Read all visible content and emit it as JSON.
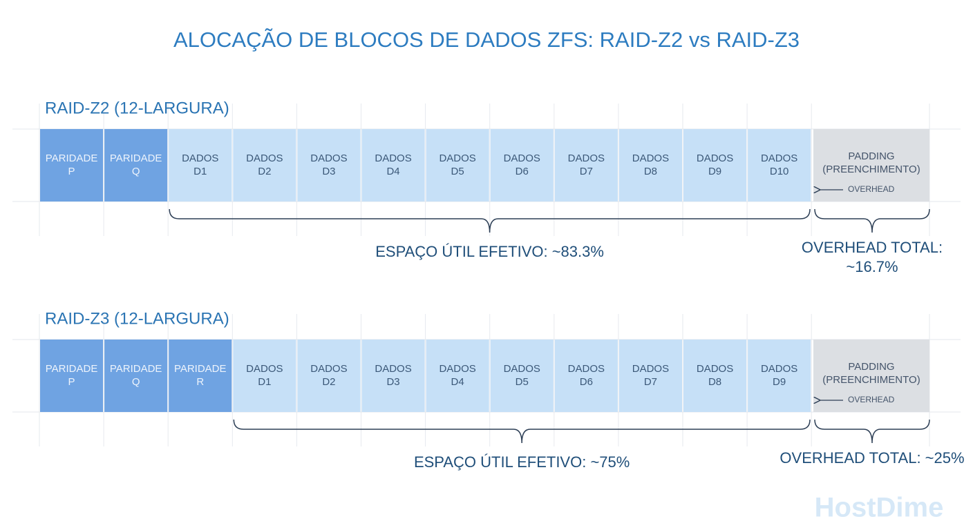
{
  "title": "ALOCAÇÃO DE BLOCOS DE DADOS ZFS: RAID-Z2 vs RAID-Z3",
  "sections": [
    {
      "label": "RAID-Z2 (12-LARGURA)",
      "blocks": [
        {
          "color": "#6fa3e2",
          "lines": [
            "PARIDADE",
            "P"
          ]
        },
        {
          "color": "#6fa3e2",
          "lines": [
            "PARIDADE",
            "Q"
          ]
        },
        {
          "color": "#c6e0f7",
          "lines": [
            "DADOS",
            "D1"
          ]
        },
        {
          "color": "#c6e0f7",
          "lines": [
            "DADOS",
            "D2"
          ]
        },
        {
          "color": "#c6e0f7",
          "lines": [
            "DADOS",
            "D3"
          ]
        },
        {
          "color": "#c6e0f7",
          "lines": [
            "DADOS",
            "D4"
          ]
        },
        {
          "color": "#c6e0f7",
          "lines": [
            "DADOS",
            "D5"
          ]
        },
        {
          "color": "#c6e0f7",
          "lines": [
            "DADOS",
            "D6"
          ]
        },
        {
          "color": "#c6e0f7",
          "lines": [
            "DADOS",
            "D7"
          ]
        },
        {
          "color": "#c6e0f7",
          "lines": [
            "DADOS",
            "D8"
          ]
        },
        {
          "color": "#c6e0f7",
          "lines": [
            "DADOS",
            "D9"
          ]
        },
        {
          "color": "#c6e0f7",
          "lines": [
            "DADOS",
            "D10"
          ]
        }
      ],
      "padding": {
        "lines": [
          "PADDING",
          "(PREENCHIMENTO)"
        ],
        "note": "OVERHEAD"
      },
      "useful": "ESPAÇO ÚTIL EFETIVO: ~83.3%",
      "overhead": [
        "OVERHEAD TOTAL:",
        "~16.7%"
      ]
    },
    {
      "label": "RAID-Z3 (12-LARGURA)",
      "blocks": [
        {
          "color": "#6fa3e2",
          "lines": [
            "PARIDADE",
            "P"
          ]
        },
        {
          "color": "#6fa3e2",
          "lines": [
            "PARIDADE",
            "Q"
          ]
        },
        {
          "color": "#6fa3e2",
          "lines": [
            "PARIDADE",
            "R"
          ]
        },
        {
          "color": "#c6e0f7",
          "lines": [
            "DADOS",
            "D1"
          ]
        },
        {
          "color": "#c6e0f7",
          "lines": [
            "DADOS",
            "D2"
          ]
        },
        {
          "color": "#c6e0f7",
          "lines": [
            "DADOS",
            "D3"
          ]
        },
        {
          "color": "#c6e0f7",
          "lines": [
            "DADOS",
            "D4"
          ]
        },
        {
          "color": "#c6e0f7",
          "lines": [
            "DADOS",
            "D5"
          ]
        },
        {
          "color": "#c6e0f7",
          "lines": [
            "DADOS",
            "D6"
          ]
        },
        {
          "color": "#c6e0f7",
          "lines": [
            "DADOS",
            "D7"
          ]
        },
        {
          "color": "#c6e0f7",
          "lines": [
            "DADOS",
            "D8"
          ]
        },
        {
          "color": "#c6e0f7",
          "lines": [
            "DADOS",
            "D9"
          ]
        }
      ],
      "padding": {
        "lines": [
          "PADDING",
          "(PREENCHIMENTO)"
        ],
        "note": "OVERHEAD"
      },
      "useful": "ESPAÇO ÚTIL EFETIVO: ~75%",
      "overhead": [
        "OVERHEAD TOTAL: ~25%"
      ]
    }
  ],
  "watermark": "HostDime"
}
